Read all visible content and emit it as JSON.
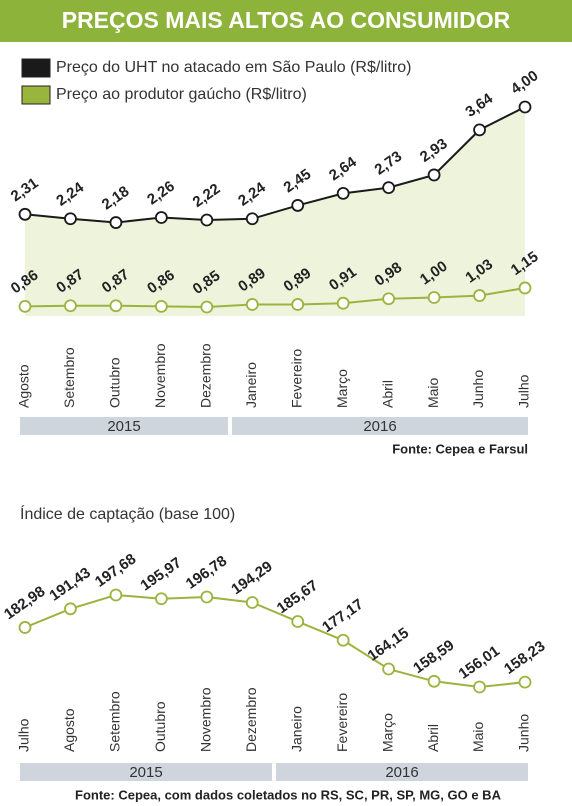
{
  "chart_data": [
    {
      "type": "line",
      "title": "PREÇOS MAIS ALTOS AO CONSUMIDOR",
      "categories": [
        "Agosto",
        "Setembro",
        "Outubro",
        "Novembro",
        "Dezembro",
        "Janeiro",
        "Fevereiro",
        "Março",
        "Abril",
        "Maio",
        "Junho",
        "Julho"
      ],
      "year_groups": [
        "2015",
        "2016"
      ],
      "series": [
        {
          "name": "Preço do UHT no atacado em São Paulo (R$/litro)",
          "color": "#1a1a1a",
          "values": [
            2.31,
            2.24,
            2.18,
            2.26,
            2.22,
            2.24,
            2.45,
            2.64,
            2.73,
            2.93,
            3.64,
            4.0
          ],
          "value_labels": [
            "2,31",
            "2,24",
            "2,18",
            "2,26",
            "2,22",
            "2,24",
            "2,45",
            "2,64",
            "2,73",
            "2,93",
            "3,64",
            "4,00"
          ]
        },
        {
          "name": "Preço ao produtor gaúcho (R$/litro)",
          "color": "#9ab53e",
          "values": [
            0.86,
            0.87,
            0.87,
            0.86,
            0.85,
            0.89,
            0.89,
            0.91,
            0.98,
            1.0,
            1.03,
            1.15
          ],
          "value_labels": [
            "0,86",
            "0,87",
            "0,87",
            "0,86",
            "0,85",
            "0,89",
            "0,89",
            "0,91",
            "0,98",
            "1,00",
            "1,03",
            "1,15"
          ]
        }
      ],
      "source": "Fonte: Cepea e Farsul"
    },
    {
      "type": "line",
      "title": "Índice de captação (base 100)",
      "categories": [
        "Julho",
        "Agosto",
        "Setembro",
        "Outubro",
        "Novembro",
        "Dezembro",
        "Janeiro",
        "Fevereiro",
        "Março",
        "Abril",
        "Maio",
        "Junho"
      ],
      "year_groups": [
        "2015",
        "2016"
      ],
      "color": "#9ab53e",
      "values": [
        182.98,
        191.43,
        197.68,
        195.97,
        196.78,
        194.29,
        185.67,
        177.17,
        164.15,
        158.59,
        156.01,
        158.23
      ],
      "value_labels": [
        "182,98",
        "191,43",
        "197,68",
        "195,97",
        "196,78",
        "194,29",
        "185,67",
        "177,17",
        "164,15",
        "158,59",
        "156,01",
        "158,23"
      ],
      "source": "Fonte: Cepea, com dados coletados no RS, SC, PR, SP, MG, GO e BA"
    }
  ]
}
